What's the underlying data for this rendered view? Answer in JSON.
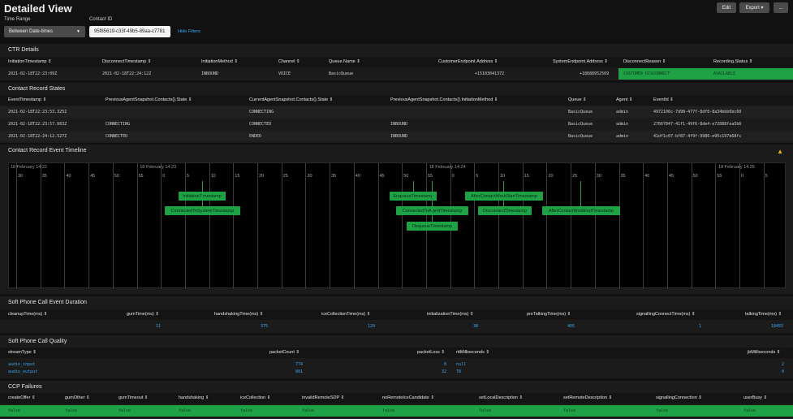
{
  "header": {
    "title": "Detailed View",
    "edit_label": "Edit",
    "export_label": "Export ▾",
    "more_label": "...",
    "time_range_label": "Time Range",
    "time_range_value": "Between Date-times",
    "contact_id_label": "Contact ID",
    "contact_id_value": "95f85619-c33f-49b5-89aa-c7781",
    "hide_filters": "Hide Filters"
  },
  "ctr": {
    "title": "CTR Details",
    "headers": [
      "InitiationTimestamp ⇕",
      "DisconnectTimestamp ⇕",
      "InitiationMethod ⇕",
      "Channel ⇕",
      "Queue.Name ⇕",
      "CustomerEndpoint.Address ⇕",
      "SystemEndpoint.Address ⇕",
      "DisconnectReason ⇕",
      "Recording.Status ⇕"
    ],
    "row": [
      "2021-02-18T22:23:09Z",
      "2021-02-18T22:24:12Z",
      "INBOUND",
      "VOICE",
      "BasicQueue",
      "+15103041372",
      "+18688952569",
      "CUSTOMER_DISCONNECT",
      "AVAILABLE"
    ]
  },
  "states": {
    "title": "Contact Record States",
    "headers": [
      "EventTimestamp ⇕",
      "PreviousAgentSnapshot.Contacts{}.State ⇕",
      "CurrentAgentSnapshot.Contacts{}.State ⇕",
      "PreviousAgentSnapshot.Contacts{}.InitiationMethod ⇕",
      "Queue ⇕",
      "Agent ⇕",
      "EventId ⇕"
    ],
    "rows": [
      [
        "2021-02-18T22:23:53.325Z",
        "",
        "CONNECTING",
        "",
        "BasicQueue",
        "admin",
        "4972106c-7d98-477f-8df0-8a34bbb6bc60"
      ],
      [
        "2021-02-18T22:23:57.603Z",
        "CONNECTING",
        "CONNECTED",
        "INBOUND",
        "BasicQueue",
        "admin",
        "27667847-41f1-49f6-8de4-e72088fea5b6"
      ],
      [
        "2021-02-18T22:24:12.527Z",
        "CONNECTED",
        "ENDED",
        "INBOUND",
        "BasicQueue",
        "admin",
        "41df1c07-bf87-4f9f-9986-e95c197b68fc"
      ]
    ]
  },
  "timeline": {
    "title": "Contact Record Event Timeline",
    "warning_icon": "warning-icon",
    "date_labels": [
      "18 February 14:22",
      "18 February 14:23",
      "18 February 14:24",
      "18 February 14:25"
    ],
    "tick_labels": [
      "30",
      "35",
      "40",
      "45",
      "50",
      "55",
      "0",
      "5",
      "10",
      "15",
      "20",
      "25",
      "30",
      "35",
      "40",
      "45",
      "50",
      "55",
      "0",
      "5",
      "10",
      "15",
      "20",
      "25",
      "30",
      "35",
      "40",
      "45",
      "50",
      "55",
      "0",
      "5"
    ],
    "events": [
      "InitiationTimestamp",
      "ConnectedToSystemTimestamp",
      "EnqueueTimestamp",
      "ConnectedToAgentTimestamp",
      "DequeueTimestamp",
      "AfterContactWorkStartTimestamp",
      "DisconnectTimestamp",
      "AfterContactWorkEndTimestamp"
    ]
  },
  "duration": {
    "title": "Soft Phone Call Event Duration",
    "headers": [
      "cleanupTime(ms) ⇕",
      "gumTime(ms) ⇕",
      "handshakingTime(ms) ⇕",
      "iceCollectionTime(ms) ⇕",
      "initializationTime(ms) ⇕",
      "preTalkingTime(ms) ⇕",
      "signallingConnectTime(ms) ⇕",
      "talkingTime(ms) ⇕"
    ],
    "row": [
      "",
      "11",
      "375",
      "120",
      "38",
      "405",
      "1",
      "18455"
    ]
  },
  "quality": {
    "title": "Soft Phone Call Quality",
    "headers": [
      "streamType ⇕",
      "packetCount ⇕",
      "packetLoss ⇕",
      "rttMilliseconds ⇕",
      "jbMilliseconds ⇕"
    ],
    "rows": [
      [
        "audio_input",
        "774",
        "0",
        "null",
        "2"
      ],
      [
        "audio_output",
        "801",
        "32",
        "78",
        "0"
      ]
    ]
  },
  "ccp": {
    "title": "CCP Failures",
    "headers": [
      "createOffer ⇕",
      "gumOther ⇕",
      "gumTimeout ⇕",
      "handshaking ⇕",
      "iceCollection ⇕",
      "invalidRemoteSDP ⇕",
      "noRemoteIceCandidate ⇕",
      "setLocalDescription ⇕",
      "setRemoteDescription ⇕",
      "signallingConnection ⇕",
      "userBusy ⇕"
    ],
    "row": [
      "false",
      "false",
      "false",
      "false",
      "false",
      "false",
      "false",
      "false",
      "false",
      "false",
      "false"
    ]
  },
  "colors": {
    "accent_green": "#1fa146",
    "link_blue": "#3da8f4"
  }
}
